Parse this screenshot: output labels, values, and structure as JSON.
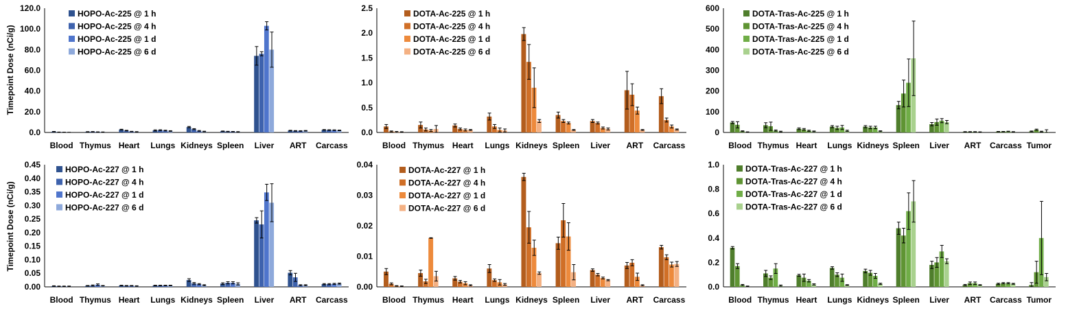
{
  "ylabel": "Timepoint Dose (nCi/g)",
  "chart_data": [
    {
      "type": "bar",
      "title": "",
      "xlabel": "",
      "ylabel": "Timepoint Dose (nCi/g)",
      "ylim": [
        0,
        120
      ],
      "yticks": [
        0,
        20,
        40,
        60,
        80,
        100,
        120
      ],
      "ytick_decimals": 1,
      "legend_position": "top-left",
      "categories": [
        "Blood",
        "Thymus",
        "Heart",
        "Lungs",
        "Kidneys",
        "Spleen",
        "Liver",
        "ART",
        "Carcass"
      ],
      "colors": [
        "#2f528f",
        "#3e62ad",
        "#4f75cc",
        "#8ea9db"
      ],
      "series": [
        {
          "name": "HOPO-Ac-225 @ 1 h",
          "values": [
            0.8,
            0.6,
            2.8,
            2.0,
            5.2,
            1.2,
            74,
            1.8,
            2.5
          ],
          "errors": [
            0.2,
            0.2,
            0.3,
            0.5,
            0.6,
            0.2,
            9,
            0.3,
            0.3
          ]
        },
        {
          "name": "HOPO-Ac-225 @ 4 h",
          "values": [
            0.3,
            0.7,
            1.8,
            2.2,
            3.2,
            0.9,
            76,
            1.5,
            2.3
          ],
          "errors": [
            0.1,
            0.2,
            0.3,
            0.4,
            0.5,
            0.2,
            2,
            0.3,
            0.3
          ]
        },
        {
          "name": "HOPO-Ac-225 @ 1 d",
          "values": [
            0.2,
            0.5,
            0.9,
            1.8,
            1.5,
            0.8,
            103,
            1.4,
            2.2
          ],
          "errors": [
            0.1,
            0.1,
            0.2,
            0.4,
            0.4,
            0.2,
            4,
            0.3,
            0.3
          ]
        },
        {
          "name": "HOPO-Ac-225 @ 6 d",
          "values": [
            0.1,
            0.4,
            0.6,
            1.4,
            0.9,
            0.6,
            80,
            1.6,
            2.0
          ],
          "errors": [
            0.1,
            0.1,
            0.2,
            0.3,
            0.3,
            0.2,
            17,
            0.3,
            0.3
          ]
        }
      ]
    },
    {
      "type": "bar",
      "title": "",
      "xlabel": "",
      "ylabel": "",
      "ylim": [
        0,
        2.5
      ],
      "yticks": [
        0,
        0.5,
        1.0,
        1.5,
        2.0,
        2.5
      ],
      "ytick_decimals": 1,
      "legend_position": "top-left",
      "categories": [
        "Blood",
        "Thymus",
        "Heart",
        "Lungs",
        "Kidneys",
        "Spleen",
        "Liver",
        "ART",
        "Carcass"
      ],
      "colors": [
        "#b35d1d",
        "#d06f27",
        "#ed8a3c",
        "#f4b183"
      ],
      "series": [
        {
          "name": "DOTA-Ac-225 @ 1 h",
          "values": [
            0.12,
            0.15,
            0.14,
            0.32,
            1.98,
            0.35,
            0.23,
            0.85,
            0.73
          ],
          "errors": [
            0.04,
            0.06,
            0.03,
            0.07,
            0.13,
            0.06,
            0.03,
            0.38,
            0.15
          ]
        },
        {
          "name": "DOTA-Ac-225 @ 4 h",
          "values": [
            0.02,
            0.06,
            0.07,
            0.12,
            1.42,
            0.23,
            0.19,
            0.76,
            0.25
          ],
          "errors": [
            0.01,
            0.03,
            0.02,
            0.04,
            0.35,
            0.03,
            0.02,
            0.22,
            0.04
          ]
        },
        {
          "name": "DOTA-Ac-225 @ 1 d",
          "values": [
            0.01,
            0.04,
            0.05,
            0.05,
            0.9,
            0.19,
            0.09,
            0.44,
            0.12
          ],
          "errors": [
            0.01,
            0.02,
            0.02,
            0.04,
            0.4,
            0.02,
            0.02,
            0.07,
            0.03
          ]
        },
        {
          "name": "DOTA-Ac-225 @ 6 d",
          "values": [
            0.01,
            0.07,
            0.05,
            0.04,
            0.23,
            0.05,
            0.07,
            0.05,
            0.06
          ],
          "errors": [
            0.005,
            0.07,
            0.01,
            0.03,
            0.03,
            0.01,
            0.02,
            0.01,
            0.01
          ]
        }
      ]
    },
    {
      "type": "bar",
      "title": "",
      "xlabel": "",
      "ylabel": "",
      "ylim": [
        0,
        600
      ],
      "yticks": [
        0,
        100,
        200,
        300,
        400,
        500,
        600
      ],
      "ytick_decimals": 0,
      "legend_position": "top-left",
      "categories": [
        "Blood",
        "Thymus",
        "Heart",
        "Lungs",
        "Kidneys",
        "Spleen",
        "Liver",
        "ART",
        "Carcass",
        "Tumor"
      ],
      "colors": [
        "#4f7e2c",
        "#5f9433",
        "#70ad47",
        "#a9d18e"
      ],
      "series": [
        {
          "name": "DOTA-Tras-Ac-225 @ 1 h",
          "values": [
            48,
            35,
            18,
            28,
            28,
            132,
            40,
            3,
            4,
            5
          ],
          "errors": [
            5,
            12,
            4,
            5,
            5,
            18,
            8,
            1,
            1,
            2
          ]
        },
        {
          "name": "DOTA-Tras-Ac-225 @ 4 h",
          "values": [
            37,
            30,
            15,
            22,
            24,
            188,
            50,
            3,
            4,
            13
          ],
          "errors": [
            15,
            20,
            4,
            8,
            6,
            65,
            15,
            1,
            1,
            3
          ]
        },
        {
          "name": "DOTA-Tras-Ac-225 @ 1 d",
          "values": [
            6,
            9,
            8,
            24,
            24,
            240,
            57,
            3,
            5,
            4
          ],
          "errors": [
            2,
            3,
            3,
            10,
            6,
            115,
            10,
            1,
            1,
            2
          ]
        },
        {
          "name": "DOTA-Tras-Ac-225 @ 6 d",
          "values": [
            2,
            4,
            5,
            8,
            6,
            358,
            50,
            2,
            3,
            3
          ],
          "errors": [
            1,
            2,
            2,
            3,
            2,
            180,
            8,
            1,
            1,
            10
          ]
        }
      ]
    },
    {
      "type": "bar",
      "title": "",
      "xlabel": "",
      "ylabel": "Timepoint Dose (nCi/g)",
      "ylim": [
        0,
        0.45
      ],
      "yticks": [
        0,
        0.05,
        0.1,
        0.15,
        0.2,
        0.25,
        0.3,
        0.35,
        0.4,
        0.45
      ],
      "ytick_decimals": 2,
      "legend_position": "top-left",
      "categories": [
        "Blood",
        "Thymus",
        "Heart",
        "Lungs",
        "Kidneys",
        "Spleen",
        "Liver",
        "ART",
        "Carcass"
      ],
      "colors": [
        "#2f528f",
        "#3e62ad",
        "#4f75cc",
        "#8ea9db"
      ],
      "series": [
        {
          "name": "HOPO-Ac-227 @ 1 h",
          "values": [
            0.003,
            0.004,
            0.005,
            0.005,
            0.025,
            0.012,
            0.245,
            0.052,
            0.01
          ],
          "errors": [
            0.001,
            0.001,
            0.001,
            0.001,
            0.005,
            0.003,
            0.01,
            0.008,
            0.002
          ]
        },
        {
          "name": "HOPO-Ac-227 @ 4 h",
          "values": [
            0.002,
            0.005,
            0.004,
            0.005,
            0.013,
            0.015,
            0.23,
            0.035,
            0.01
          ],
          "errors": [
            0.001,
            0.002,
            0.001,
            0.001,
            0.003,
            0.004,
            0.05,
            0.015,
            0.002
          ]
        },
        {
          "name": "HOPO-Ac-227 @ 1 d",
          "values": [
            0.002,
            0.008,
            0.004,
            0.005,
            0.01,
            0.015,
            0.348,
            0.006,
            0.011
          ],
          "errors": [
            0.001,
            0.003,
            0.001,
            0.001,
            0.002,
            0.004,
            0.03,
            0.002,
            0.002
          ]
        },
        {
          "name": "HOPO-Ac-227 @ 6 d",
          "values": [
            0.002,
            0.004,
            0.003,
            0.005,
            0.006,
            0.011,
            0.31,
            0.006,
            0.012
          ],
          "errors": [
            0.001,
            0.001,
            0.001,
            0.001,
            0.002,
            0.004,
            0.07,
            0.002,
            0.002
          ]
        }
      ]
    },
    {
      "type": "bar",
      "title": "",
      "xlabel": "",
      "ylabel": "",
      "ylim": [
        0,
        0.04
      ],
      "yticks": [
        0,
        0.01,
        0.02,
        0.03,
        0.04
      ],
      "ytick_decimals": 2,
      "legend_position": "top-left",
      "categories": [
        "Blood",
        "Thymus",
        "Heart",
        "Lungs",
        "Kidneys",
        "Spleen",
        "Liver",
        "ART",
        "Carcass"
      ],
      "colors": [
        "#b35d1d",
        "#d06f27",
        "#ed8a3c",
        "#f4b183"
      ],
      "series": [
        {
          "name": "DOTA-Ac-227 @ 1 h",
          "values": [
            0.005,
            0.0045,
            0.0028,
            0.006,
            0.036,
            0.0143,
            0.0055,
            0.007,
            0.013
          ],
          "errors": [
            0.001,
            0.001,
            0.0006,
            0.0013,
            0.0012,
            0.002,
            0.0004,
            0.001,
            0.0006
          ]
        },
        {
          "name": "DOTA-Ac-227 @ 4 h",
          "values": [
            0.001,
            0.0018,
            0.0017,
            0.0022,
            0.0195,
            0.0218,
            0.004,
            0.0079,
            0.0097
          ],
          "errors": [
            0.0003,
            0.0007,
            0.0004,
            0.0004,
            0.0052,
            0.0055,
            0.0004,
            0.001,
            0.0008
          ]
        },
        {
          "name": "DOTA-Ac-227 @ 1 d",
          "values": [
            0.0003,
            0.016,
            0.0012,
            0.0015,
            0.0128,
            0.0165,
            0.0029,
            0.0033,
            0.0073
          ],
          "errors": [
            0.0001,
            0.0001,
            0.0005,
            0.0009,
            0.0025,
            0.0045,
            0.0003,
            0.0012,
            0.0008
          ]
        },
        {
          "name": "DOTA-Ac-227 @ 6 d",
          "values": [
            0.0002,
            0.0035,
            0.0005,
            0.0008,
            0.0045,
            0.0048,
            0.0022,
            0.0005,
            0.0075
          ],
          "errors": [
            0.0001,
            0.0016,
            0.0002,
            0.0003,
            0.0004,
            0.0025,
            0.0002,
            0.0002,
            0.0008
          ]
        }
      ]
    },
    {
      "type": "bar",
      "title": "",
      "xlabel": "",
      "ylabel": "",
      "ylim": [
        0,
        1.0
      ],
      "yticks": [
        0,
        0.2,
        0.4,
        0.6,
        0.8,
        1.0
      ],
      "ytick_decimals": 1,
      "legend_position": "top-left",
      "categories": [
        "Blood",
        "Thymus",
        "Heart",
        "Lungs",
        "Kidneys",
        "Spleen",
        "Liver",
        "ART",
        "Carcass",
        "Tumor"
      ],
      "colors": [
        "#4f7e2c",
        "#5f9433",
        "#70ad47",
        "#a9d18e"
      ],
      "series": [
        {
          "name": "DOTA-Tras-Ac-227 @ 1 h",
          "values": [
            0.32,
            0.11,
            0.095,
            0.155,
            0.13,
            0.48,
            0.18,
            0.015,
            0.025,
            0.015
          ],
          "errors": [
            0.01,
            0.025,
            0.008,
            0.01,
            0.015,
            0.05,
            0.03,
            0.005,
            0.005,
            0.02
          ]
        },
        {
          "name": "DOTA-Tras-Ac-227 @ 4 h",
          "values": [
            0.17,
            0.075,
            0.075,
            0.1,
            0.115,
            0.42,
            0.2,
            0.03,
            0.03,
            0.12
          ],
          "errors": [
            0.02,
            0.015,
            0.03,
            0.015,
            0.02,
            0.06,
            0.04,
            0.01,
            0.005,
            0.09
          ]
        },
        {
          "name": "DOTA-Tras-Ac-227 @ 1 d",
          "values": [
            0.015,
            0.15,
            0.05,
            0.075,
            0.09,
            0.62,
            0.29,
            0.03,
            0.03,
            0.4
          ],
          "errors": [
            0.005,
            0.04,
            0.01,
            0.03,
            0.02,
            0.15,
            0.05,
            0.01,
            0.005,
            0.3
          ]
        },
        {
          "name": "DOTA-Tras-Ac-227 @ 6 d",
          "values": [
            0.005,
            0.01,
            0.02,
            0.015,
            0.025,
            0.7,
            0.21,
            0.015,
            0.025,
            0.08
          ],
          "errors": [
            0.002,
            0.005,
            0.005,
            0.003,
            0.005,
            0.17,
            0.02,
            0.003,
            0.004,
            0.03
          ]
        }
      ]
    }
  ]
}
